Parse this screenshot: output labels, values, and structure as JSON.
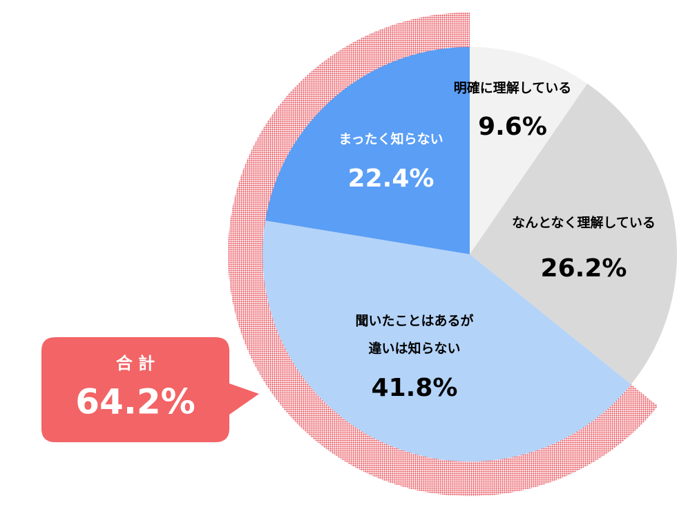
{
  "chart_data": {
    "type": "pie",
    "categories": [
      [
        "明確に理解している"
      ],
      [
        "なんとなく理解している"
      ],
      [
        "聞いたことはあるが",
        "違いは知らない"
      ],
      [
        "まったく知らない"
      ]
    ],
    "values": [
      9.6,
      26.2,
      41.8,
      22.4
    ],
    "value_labels": [
      "9.6%",
      "26.2%",
      "41.8%",
      "22.4%"
    ],
    "colors": [
      "#f2f2f2",
      "#d9d9d9",
      "#b4d3f8",
      "#5a9ef5"
    ],
    "label_colors": [
      "#000000",
      "#000000",
      "#000000",
      "#ffffff"
    ],
    "total": {
      "label": "合 計",
      "value": 64.2,
      "value_label": "64.2%",
      "color": "#f26466"
    }
  }
}
